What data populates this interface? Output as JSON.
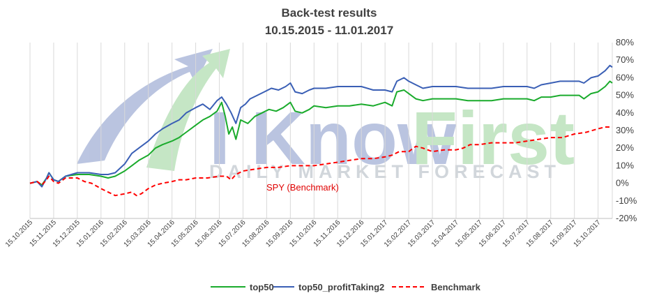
{
  "chart_data": {
    "type": "line",
    "title": "Back-test results",
    "subtitle": "10.15.2015 - 11.01.2017",
    "xlabel": "",
    "ylabel": "",
    "ylim": [
      -20,
      80
    ],
    "yticks": [
      80,
      70,
      60,
      50,
      40,
      30,
      20,
      10,
      0,
      -10,
      -20
    ],
    "ytick_labels": [
      "80%",
      "70%",
      "60%",
      "50%",
      "40%",
      "30%",
      "20%",
      "10%",
      "0%",
      "-10%",
      "-20%"
    ],
    "x_categories": [
      "15.10.2015",
      "15.11.2015",
      "15.12.2015",
      "15.01.2016",
      "15.02.2016",
      "15.03.2016",
      "15.04.2016",
      "15.05.2016",
      "15.06.2016",
      "15.07.2016",
      "15.08.2016",
      "15.09.2016",
      "15.10.2016",
      "15.11.2016",
      "15.12.2016",
      "15.01.2017",
      "15.02.2017",
      "15.03.2017",
      "15.04.2017",
      "15.05.2017",
      "15.06.2017",
      "15.07.2017",
      "15.08.2017",
      "15.09.2017",
      "15.10.2017"
    ],
    "x_end_index": 24.6,
    "grid": "vertical",
    "legend_position": "bottom",
    "annotation": "SPY (Benchmark)",
    "watermark": "I Know First — DAILY MARKET FORECAST",
    "series": [
      {
        "name": "top50",
        "color": "#1aab2c",
        "style": "solid",
        "points": [
          [
            0,
            0
          ],
          [
            0.3,
            1
          ],
          [
            0.5,
            -1
          ],
          [
            0.7,
            3
          ],
          [
            0.8,
            6
          ],
          [
            1,
            2
          ],
          [
            1.2,
            1
          ],
          [
            1.5,
            4
          ],
          [
            2,
            5
          ],
          [
            2.5,
            5
          ],
          [
            3,
            4
          ],
          [
            3.3,
            3
          ],
          [
            3.6,
            4
          ],
          [
            4,
            7
          ],
          [
            4.3,
            10
          ],
          [
            4.6,
            13
          ],
          [
            5,
            16
          ],
          [
            5.3,
            20
          ],
          [
            5.6,
            22
          ],
          [
            6,
            24
          ],
          [
            6.3,
            26
          ],
          [
            6.6,
            29
          ],
          [
            7,
            33
          ],
          [
            7.3,
            36
          ],
          [
            7.6,
            38
          ],
          [
            7.9,
            41
          ],
          [
            8.1,
            46
          ],
          [
            8.25,
            38
          ],
          [
            8.4,
            28
          ],
          [
            8.55,
            32
          ],
          [
            8.7,
            25
          ],
          [
            8.9,
            36
          ],
          [
            9.2,
            34
          ],
          [
            9.5,
            38
          ],
          [
            9.8,
            40
          ],
          [
            10.1,
            42
          ],
          [
            10.4,
            41
          ],
          [
            10.7,
            43
          ],
          [
            11,
            46
          ],
          [
            11.2,
            41
          ],
          [
            11.5,
            40
          ],
          [
            11.8,
            42
          ],
          [
            12,
            44
          ],
          [
            12.5,
            43
          ],
          [
            13,
            44
          ],
          [
            13.5,
            44
          ],
          [
            14,
            45
          ],
          [
            14.5,
            44
          ],
          [
            15,
            46
          ],
          [
            15.3,
            44
          ],
          [
            15.5,
            52
          ],
          [
            15.8,
            53
          ],
          [
            16,
            51
          ],
          [
            16.3,
            48
          ],
          [
            16.6,
            47
          ],
          [
            17,
            48
          ],
          [
            17.5,
            48
          ],
          [
            18,
            48
          ],
          [
            18.5,
            47
          ],
          [
            19,
            47
          ],
          [
            19.5,
            47
          ],
          [
            20,
            48
          ],
          [
            20.5,
            48
          ],
          [
            21,
            48
          ],
          [
            21.3,
            47
          ],
          [
            21.6,
            49
          ],
          [
            22,
            49
          ],
          [
            22.4,
            50
          ],
          [
            22.8,
            50
          ],
          [
            23.2,
            50
          ],
          [
            23.4,
            48
          ],
          [
            23.7,
            51
          ],
          [
            24,
            52
          ],
          [
            24.3,
            55
          ],
          [
            24.5,
            58
          ],
          [
            24.6,
            57
          ]
        ]
      },
      {
        "name": "top50_profitTaking2",
        "color": "#3a5fb5",
        "style": "solid",
        "points": [
          [
            0,
            0
          ],
          [
            0.3,
            1
          ],
          [
            0.5,
            -2
          ],
          [
            0.7,
            3
          ],
          [
            0.8,
            6
          ],
          [
            1,
            2
          ],
          [
            1.2,
            1
          ],
          [
            1.5,
            4
          ],
          [
            2,
            6
          ],
          [
            2.5,
            6
          ],
          [
            3,
            5
          ],
          [
            3.3,
            5
          ],
          [
            3.6,
            6
          ],
          [
            4,
            11
          ],
          [
            4.3,
            17
          ],
          [
            4.6,
            20
          ],
          [
            5,
            24
          ],
          [
            5.3,
            28
          ],
          [
            5.6,
            31
          ],
          [
            6,
            34
          ],
          [
            6.3,
            36
          ],
          [
            6.6,
            40
          ],
          [
            7,
            43
          ],
          [
            7.3,
            45
          ],
          [
            7.6,
            42
          ],
          [
            7.9,
            47
          ],
          [
            8.1,
            49
          ],
          [
            8.3,
            45
          ],
          [
            8.5,
            40
          ],
          [
            8.7,
            34
          ],
          [
            8.9,
            43
          ],
          [
            9.1,
            45
          ],
          [
            9.3,
            48
          ],
          [
            9.6,
            50
          ],
          [
            9.9,
            52
          ],
          [
            10.2,
            54
          ],
          [
            10.5,
            53
          ],
          [
            10.8,
            55
          ],
          [
            11,
            57
          ],
          [
            11.2,
            52
          ],
          [
            11.5,
            51
          ],
          [
            11.8,
            53
          ],
          [
            12,
            54
          ],
          [
            12.5,
            54
          ],
          [
            13,
            55
          ],
          [
            13.5,
            55
          ],
          [
            14,
            55
          ],
          [
            14.5,
            53
          ],
          [
            15,
            53
          ],
          [
            15.3,
            52
          ],
          [
            15.5,
            58
          ],
          [
            15.8,
            60
          ],
          [
            16,
            58
          ],
          [
            16.3,
            56
          ],
          [
            16.6,
            54
          ],
          [
            17,
            55
          ],
          [
            17.5,
            55
          ],
          [
            18,
            55
          ],
          [
            18.5,
            54
          ],
          [
            19,
            54
          ],
          [
            19.5,
            54
          ],
          [
            20,
            55
          ],
          [
            20.5,
            55
          ],
          [
            21,
            55
          ],
          [
            21.3,
            54
          ],
          [
            21.6,
            56
          ],
          [
            22,
            57
          ],
          [
            22.4,
            58
          ],
          [
            22.8,
            58
          ],
          [
            23.2,
            58
          ],
          [
            23.4,
            57
          ],
          [
            23.7,
            60
          ],
          [
            24,
            61
          ],
          [
            24.3,
            64
          ],
          [
            24.5,
            67
          ],
          [
            24.6,
            66
          ]
        ]
      },
      {
        "name": "Benchmark",
        "color": "#ff0000",
        "style": "dashed",
        "points": [
          [
            0,
            0
          ],
          [
            0.3,
            1
          ],
          [
            0.5,
            -1
          ],
          [
            0.7,
            2
          ],
          [
            0.8,
            4
          ],
          [
            1,
            1
          ],
          [
            1.2,
            0
          ],
          [
            1.5,
            3
          ],
          [
            2,
            3
          ],
          [
            2.3,
            1
          ],
          [
            2.6,
            0
          ],
          [
            3,
            -3
          ],
          [
            3.3,
            -5
          ],
          [
            3.6,
            -7
          ],
          [
            4,
            -6
          ],
          [
            4.3,
            -5
          ],
          [
            4.5,
            -7
          ],
          [
            4.7,
            -6
          ],
          [
            5,
            -3
          ],
          [
            5.3,
            -1
          ],
          [
            5.6,
            0
          ],
          [
            6,
            1
          ],
          [
            6.3,
            2
          ],
          [
            6.6,
            2
          ],
          [
            7,
            3
          ],
          [
            7.5,
            3
          ],
          [
            8,
            4
          ],
          [
            8.3,
            4
          ],
          [
            8.5,
            2
          ],
          [
            8.7,
            5
          ],
          [
            9,
            7
          ],
          [
            9.5,
            8
          ],
          [
            10,
            9
          ],
          [
            10.5,
            9
          ],
          [
            11,
            10
          ],
          [
            11.5,
            10
          ],
          [
            12,
            10
          ],
          [
            12.5,
            11
          ],
          [
            13,
            12
          ],
          [
            13.5,
            13
          ],
          [
            14,
            14
          ],
          [
            14.5,
            14
          ],
          [
            15,
            15
          ],
          [
            15.3,
            16
          ],
          [
            15.6,
            18
          ],
          [
            16,
            18
          ],
          [
            16.3,
            21
          ],
          [
            16.6,
            20
          ],
          [
            17,
            18
          ],
          [
            17.5,
            19
          ],
          [
            18,
            19
          ],
          [
            18.3,
            20
          ],
          [
            18.6,
            22
          ],
          [
            19,
            22
          ],
          [
            19.5,
            23
          ],
          [
            20,
            23
          ],
          [
            20.5,
            23
          ],
          [
            21,
            24
          ],
          [
            21.5,
            25
          ],
          [
            22,
            26
          ],
          [
            22.5,
            26
          ],
          [
            23,
            28
          ],
          [
            23.5,
            29
          ],
          [
            24,
            31
          ],
          [
            24.3,
            32
          ],
          [
            24.6,
            32
          ]
        ]
      }
    ]
  },
  "legend": {
    "items": [
      {
        "label": "top50",
        "color": "#1aab2c",
        "style": "solid"
      },
      {
        "label": "top50_profitTaking2",
        "color": "#3a5fb5",
        "style": "solid"
      },
      {
        "label": "Benchmark",
        "color": "#ff0000",
        "style": "dashed"
      }
    ]
  },
  "watermark": {
    "word1": "I Know",
    "word2": "First",
    "tagline": "DAILY MARKET FORECAST",
    "colors": {
      "blue": "#3b5aa8",
      "green": "#5cb85c",
      "gray": "#7d8c99"
    }
  }
}
